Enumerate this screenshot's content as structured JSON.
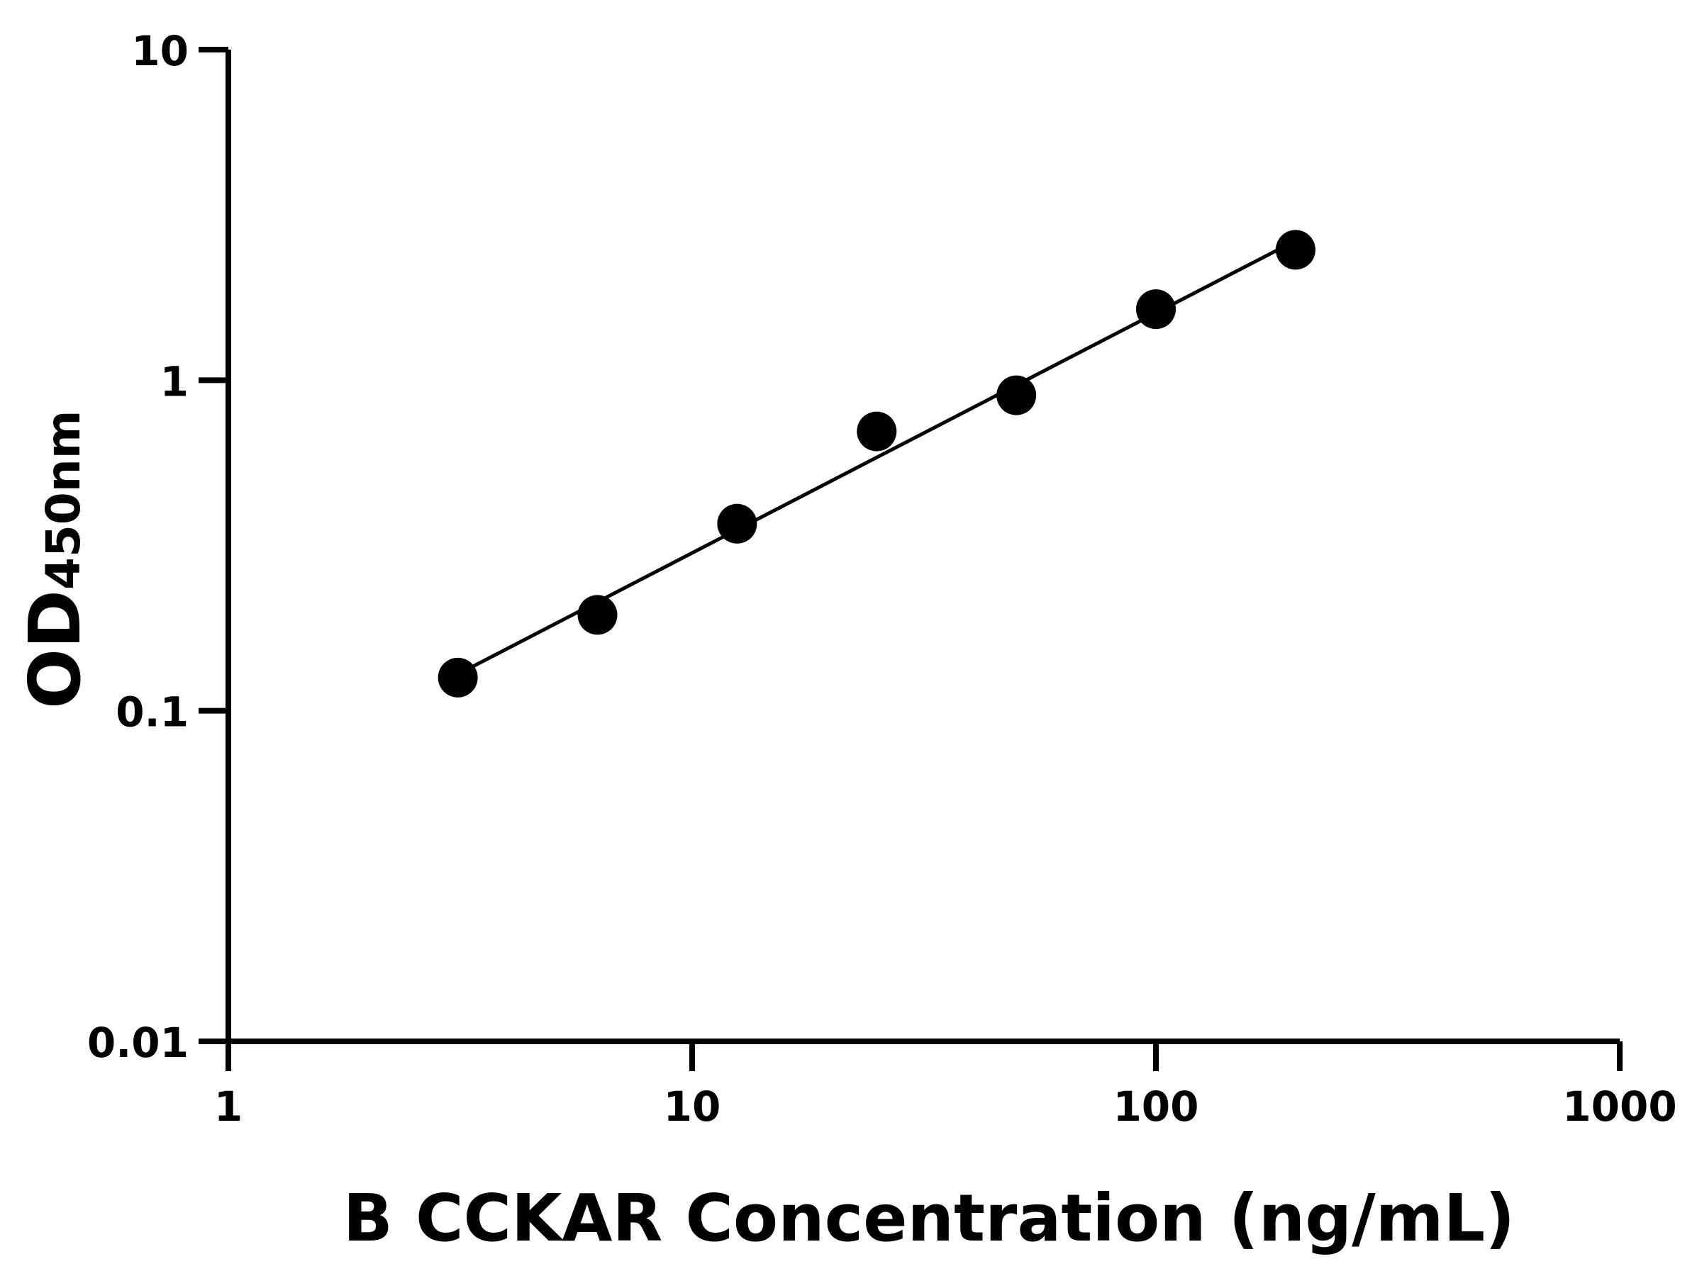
{
  "chart_data": {
    "type": "scatter",
    "title": "",
    "xlabel": "B CCKAR Concentration (ng/mL)",
    "ylabel_main": "OD",
    "ylabel_sub": "450nm",
    "xscale": "log",
    "yscale": "log",
    "xlim": [
      1,
      1000
    ],
    "ylim": [
      0.01,
      10
    ],
    "xticks": [
      "1",
      "10",
      "100",
      "1000"
    ],
    "yticks": [
      "0.01",
      "0.1",
      "1",
      "10"
    ],
    "grid": false,
    "legend": "none",
    "fit_line": true,
    "color": "#000000",
    "series": [
      {
        "x": [
          3.125,
          6.25,
          12.5,
          25,
          50,
          100,
          200
        ],
        "y": [
          0.126,
          0.195,
          0.368,
          0.7,
          0.9,
          1.64,
          2.48
        ]
      }
    ]
  }
}
